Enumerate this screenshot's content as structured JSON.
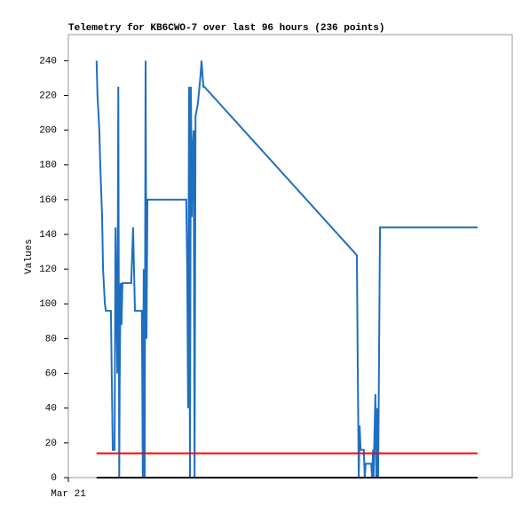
{
  "chart_data": {
    "type": "line",
    "title": "Telemetry for KB6CWO-7 over last 96 hours (236 points)",
    "y_label": "Values",
    "xlim": [
      0,
      96
    ],
    "xticks": [
      {
        "value": 0,
        "label": "Mar 21"
      }
    ],
    "ylim": [
      0,
      255
    ],
    "yticks": [
      0,
      20,
      40,
      60,
      80,
      100,
      120,
      140,
      160,
      180,
      200,
      220,
      240
    ],
    "series": [
      {
        "color": "#1f6fc0",
        "x": [
          6.1,
          6.3,
          6.7,
          6.9,
          7.3,
          7.5,
          7.9,
          8.1,
          9.2,
          9.4,
          9.6,
          10.0,
          10.2,
          10.4,
          10.6,
          10.8,
          11.0,
          11.1,
          11.3,
          11.5,
          11.7,
          13.6,
          14.0,
          14.2,
          14.4,
          15.9,
          16.1,
          16.3,
          16.5,
          16.7,
          16.9,
          17.1,
          25.5,
          25.7,
          25.9,
          26.1,
          26.3,
          26.5,
          26.7,
          26.9,
          27.1,
          27.3,
          27.5,
          28.0,
          28.6,
          28.8,
          29.2,
          29.4,
          62.4,
          62.6,
          62.8,
          63.0,
          63.2,
          63.9,
          64.1,
          64.3,
          65.5,
          65.7,
          65.9,
          66.0,
          66.2,
          66.4,
          66.6,
          66.8,
          67.0,
          67.2,
          67.4,
          88.5
        ],
        "values": [
          240,
          220,
          200,
          180,
          150,
          120,
          100,
          96,
          96,
          56,
          16,
          16,
          144,
          100,
          60,
          225,
          0,
          56,
          112,
          88,
          112,
          112,
          144,
          120,
          96,
          96,
          0,
          120,
          0,
          240,
          80,
          160,
          160,
          120,
          40,
          225,
          0,
          225,
          150,
          190,
          200,
          0,
          208,
          215,
          232,
          240,
          225,
          225,
          128,
          60,
          0,
          30,
          16,
          16,
          0,
          8,
          8,
          0,
          16,
          0,
          24,
          48,
          0,
          40,
          0,
          72,
          144,
          144
        ]
      },
      {
        "color": "#ff0000",
        "x": [
          6.1,
          88.5
        ],
        "values": [
          14,
          14
        ]
      },
      {
        "color": "#000000",
        "x": [
          6.1,
          88.5
        ],
        "values": [
          0,
          0
        ]
      }
    ]
  }
}
